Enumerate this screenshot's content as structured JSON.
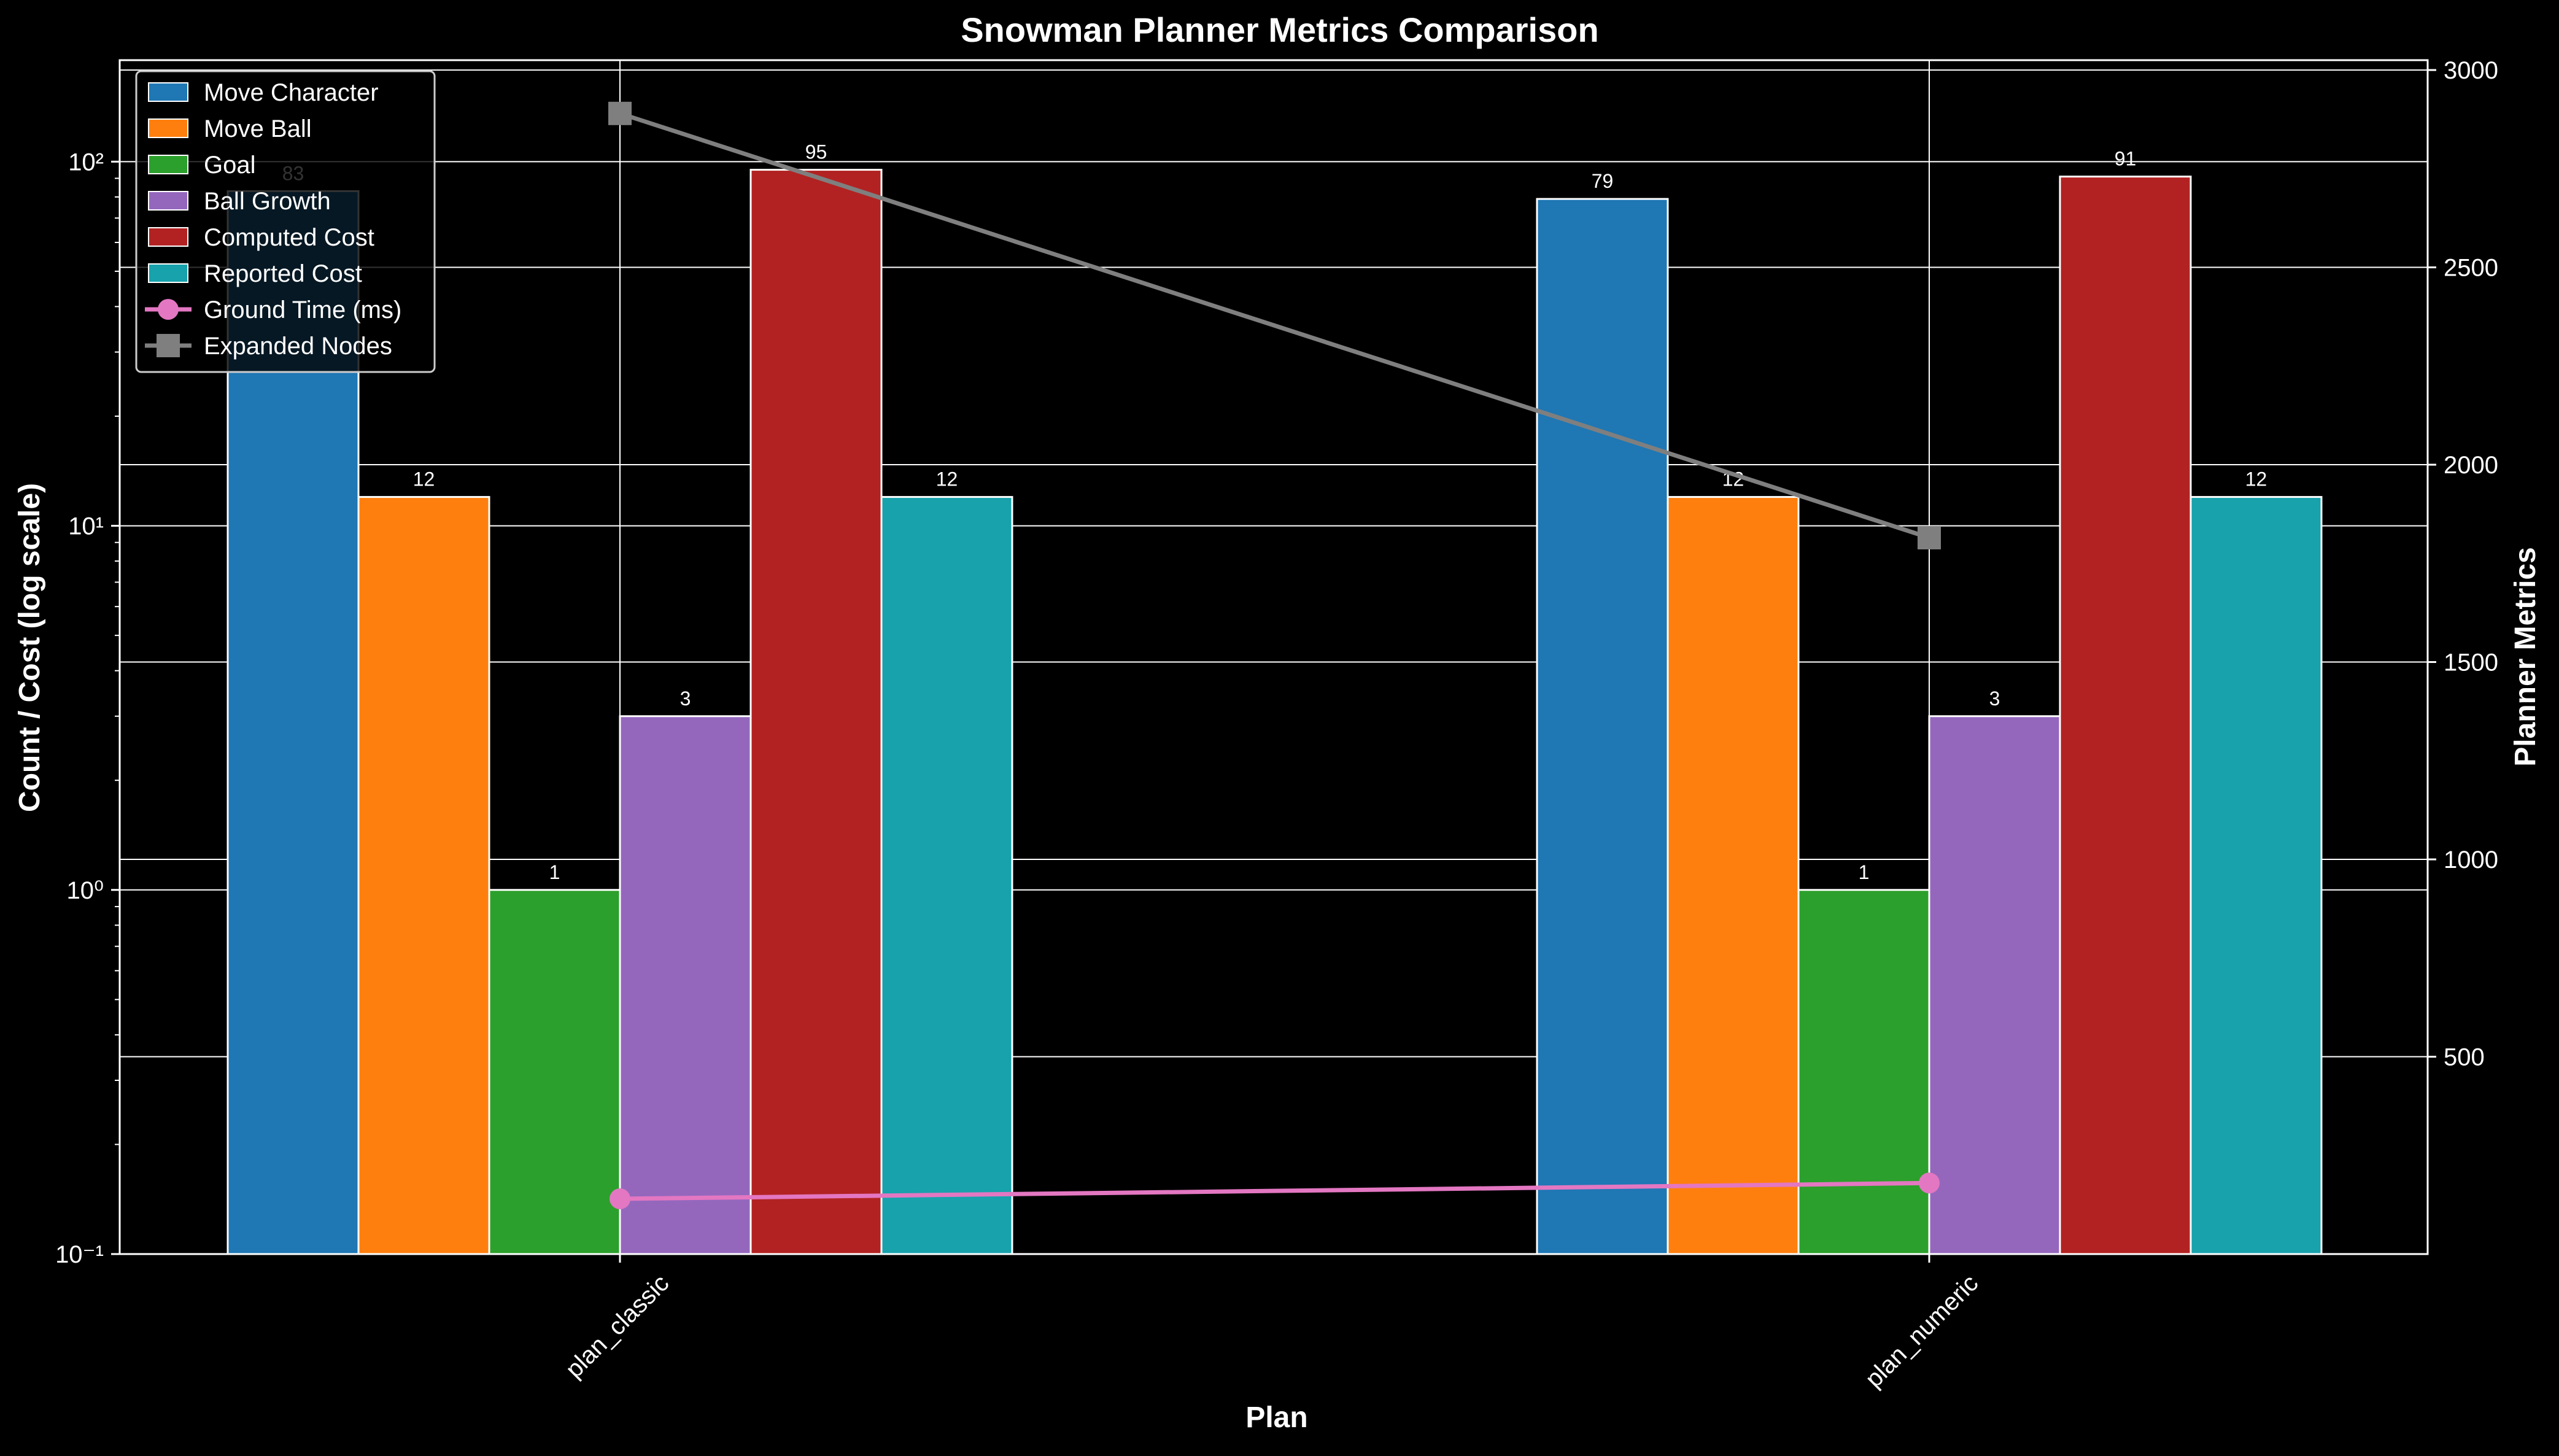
{
  "chart_data": {
    "type": "bar",
    "title": "Snowman Planner Metrics Comparison",
    "xlabel": "Plan",
    "ylabel_left": "Count / Cost (log scale)",
    "ylabel_right": "Planner Metrics",
    "categories": [
      "plan_classic",
      "plan_numeric"
    ],
    "y_left_scale": "log",
    "y_left_lim": [
      0.1,
      190
    ],
    "y_left_ticks": [
      {
        "value": 0.1,
        "label": "10⁻¹"
      },
      {
        "value": 1,
        "label": "10⁰"
      },
      {
        "value": 10,
        "label": "10¹"
      },
      {
        "value": 100,
        "label": "10²"
      }
    ],
    "y_right_lim": [
      0,
      3025
    ],
    "y_right_ticks": [
      500,
      1000,
      1500,
      2000,
      2500,
      3000
    ],
    "grid": true,
    "legend_position": "top-left",
    "bar_series": [
      {
        "name": "Move Character",
        "color": "#1f77b4",
        "values": [
          83,
          79
        ],
        "labels": [
          "83",
          "79"
        ]
      },
      {
        "name": "Move Ball",
        "color": "#ff7f0e",
        "values": [
          12,
          12
        ],
        "labels": [
          "12",
          "12"
        ]
      },
      {
        "name": "Goal",
        "color": "#2ca02c",
        "values": [
          1,
          1
        ],
        "labels": [
          "1",
          "1"
        ]
      },
      {
        "name": "Ball Growth",
        "color": "#9467bd",
        "values": [
          3,
          3
        ],
        "labels": [
          "3",
          "3"
        ]
      },
      {
        "name": "Computed Cost",
        "color": "#b22222",
        "values": [
          95,
          91
        ],
        "labels": [
          "95",
          "91"
        ]
      },
      {
        "name": "Reported Cost",
        "color": "#17a2ac",
        "values": [
          12,
          12
        ],
        "labels": [
          "12",
          "12"
        ]
      }
    ],
    "line_series": [
      {
        "name": "Ground Time (ms)",
        "color": "#e377c2",
        "marker": "circle",
        "axis": "right",
        "values": [
          140,
          180
        ]
      },
      {
        "name": "Expanded Nodes",
        "color": "#7f7f7f",
        "marker": "square",
        "axis": "right",
        "values": [
          2890,
          1815
        ]
      }
    ]
  }
}
